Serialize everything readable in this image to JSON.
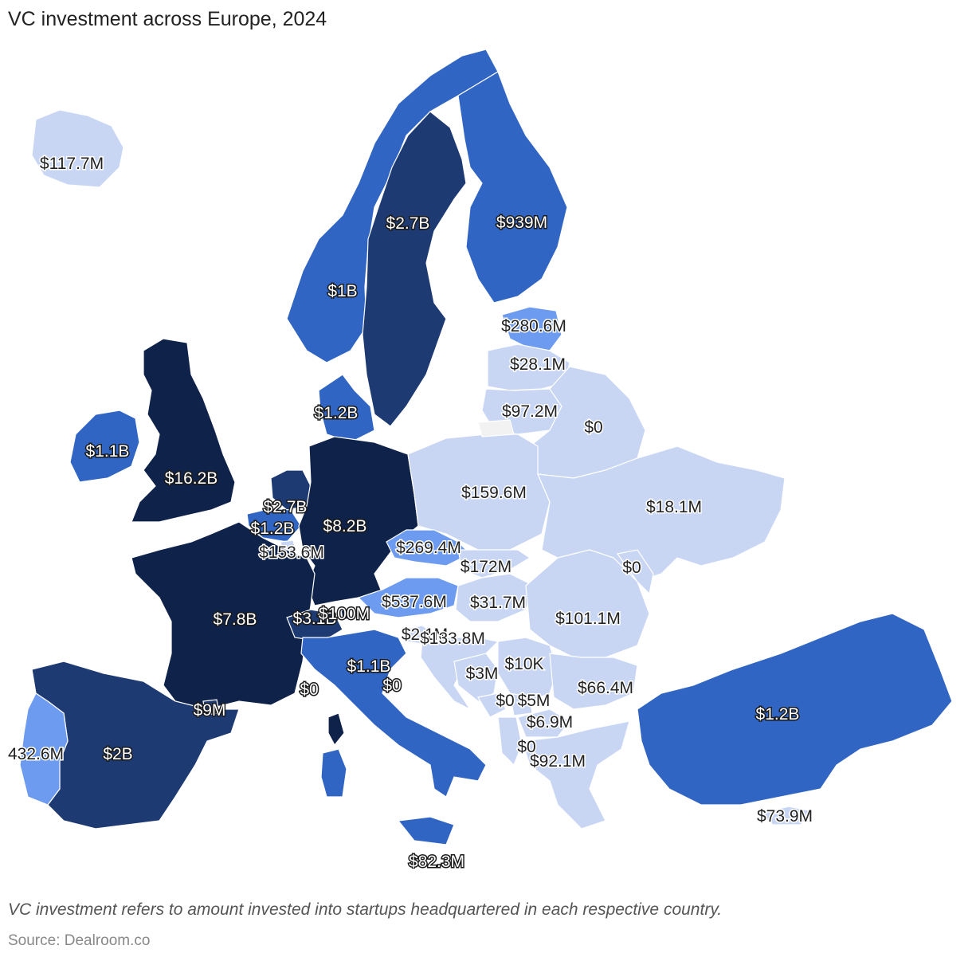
{
  "title": "VC investment across Europe, 2024",
  "note": "VC investment refers to amount invested into startups headquartered in each respective country.",
  "source": "Source: Dealroom.co",
  "scale_colors": {
    "very_high": "#0f2249",
    "high": "#1e3a73",
    "medium": "#3065c4",
    "low_medium": "#6d9bf0",
    "low": "#c8d6f4",
    "no_data": "#f2f2f2"
  },
  "countries": [
    {
      "id": "iceland",
      "value": "$117.7M",
      "tier": "low"
    },
    {
      "id": "norway",
      "value": "$1B",
      "tier": "medium"
    },
    {
      "id": "sweden",
      "value": "$2.7B",
      "tier": "high"
    },
    {
      "id": "finland",
      "value": "$939M",
      "tier": "medium"
    },
    {
      "id": "estonia",
      "value": "$280.6M",
      "tier": "low_medium"
    },
    {
      "id": "latvia",
      "value": "$28.1M",
      "tier": "low"
    },
    {
      "id": "lithuania",
      "value": "$97.2M",
      "tier": "low"
    },
    {
      "id": "belarus",
      "value": "$0",
      "tier": "low"
    },
    {
      "id": "denmark",
      "value": "$1.2B",
      "tier": "medium"
    },
    {
      "id": "ireland",
      "value": "$1.1B",
      "tier": "medium"
    },
    {
      "id": "uk",
      "value": "$16.2B",
      "tier": "very_high"
    },
    {
      "id": "netherlands",
      "value": "$2.7B",
      "tier": "high"
    },
    {
      "id": "belgium",
      "value": "$1.2B",
      "tier": "medium"
    },
    {
      "id": "luxembourg",
      "value": "$153.6M",
      "tier": "low"
    },
    {
      "id": "germany",
      "value": "$8.2B",
      "tier": "very_high"
    },
    {
      "id": "poland",
      "value": "$159.6M",
      "tier": "low"
    },
    {
      "id": "ukraine",
      "value": "$18.1M",
      "tier": "low"
    },
    {
      "id": "czechia",
      "value": "$269.4M",
      "tier": "low_medium"
    },
    {
      "id": "slovakia",
      "value": "$172M",
      "tier": "low"
    },
    {
      "id": "moldova",
      "value": "$0",
      "tier": "low"
    },
    {
      "id": "austria",
      "value": "$537.6M",
      "tier": "low_medium"
    },
    {
      "id": "hungary",
      "value": "$31.7M",
      "tier": "low"
    },
    {
      "id": "romania",
      "value": "$101.1M",
      "tier": "low"
    },
    {
      "id": "france",
      "value": "$7.8B",
      "tier": "very_high"
    },
    {
      "id": "switzerland",
      "value": "$3.1B",
      "tier": "high"
    },
    {
      "id": "liechtenstein",
      "value": "$100M",
      "tier": "high"
    },
    {
      "id": "slovenia",
      "value": "$2.1M",
      "tier": "low"
    },
    {
      "id": "croatia",
      "value": "$133.8M",
      "tier": "low"
    },
    {
      "id": "bosnia",
      "value": "$3M",
      "tier": "low"
    },
    {
      "id": "serbia",
      "value": "$10K",
      "tier": "low"
    },
    {
      "id": "bulgaria",
      "value": "$66.4M",
      "tier": "low"
    },
    {
      "id": "italy",
      "value": "$1.1B",
      "tier": "medium"
    },
    {
      "id": "monaco",
      "value": "$0",
      "tier": "medium"
    },
    {
      "id": "san_marino",
      "value": "$0",
      "tier": "medium"
    },
    {
      "id": "montenegro",
      "value": "$0",
      "tier": "low"
    },
    {
      "id": "kosovo",
      "value": "$5M",
      "tier": "low"
    },
    {
      "id": "north_macedonia",
      "value": "$6.9M",
      "tier": "low"
    },
    {
      "id": "albania",
      "value": "$0",
      "tier": "low"
    },
    {
      "id": "greece",
      "value": "$92.1M",
      "tier": "low"
    },
    {
      "id": "andorra",
      "value": "$9M",
      "tier": "high"
    },
    {
      "id": "spain",
      "value": "$2B",
      "tier": "high"
    },
    {
      "id": "portugal",
      "value": "432.6M",
      "tier": "low_medium"
    },
    {
      "id": "turkey",
      "value": "$1.2B",
      "tier": "medium"
    },
    {
      "id": "cyprus",
      "value": "$73.9M",
      "tier": "low"
    },
    {
      "id": "malta",
      "value": "$82.3M",
      "tier": "medium"
    }
  ]
}
